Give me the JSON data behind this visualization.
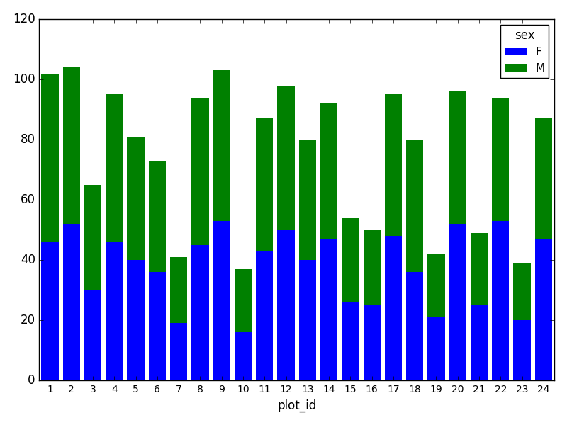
{
  "plot_ids": [
    1,
    2,
    3,
    4,
    5,
    6,
    7,
    8,
    9,
    10,
    11,
    12,
    13,
    14,
    15,
    16,
    17,
    18,
    19,
    20,
    21,
    22,
    23,
    24
  ],
  "F_values": [
    46,
    52,
    30,
    46,
    40,
    36,
    19,
    45,
    53,
    16,
    43,
    50,
    40,
    47,
    26,
    25,
    48,
    36,
    21,
    52,
    25,
    53,
    20,
    47
  ],
  "M_values": [
    56,
    52,
    35,
    49,
    41,
    37,
    22,
    49,
    50,
    21,
    44,
    48,
    40,
    45,
    28,
    25,
    47,
    44,
    21,
    44,
    24,
    41,
    19,
    40
  ],
  "F_color": "#0000ff",
  "M_color": "#008000",
  "xlabel": "plot_id",
  "ylabel": "",
  "ylim": [
    0,
    120
  ],
  "yticks": [
    0,
    20,
    40,
    60,
    80,
    100,
    120
  ],
  "title": "",
  "legend_title": "sex",
  "legend_labels": [
    "F",
    "M"
  ],
  "figsize": [
    8.0,
    6.0
  ],
  "dpi": 100,
  "bg_color": "#ffffff"
}
